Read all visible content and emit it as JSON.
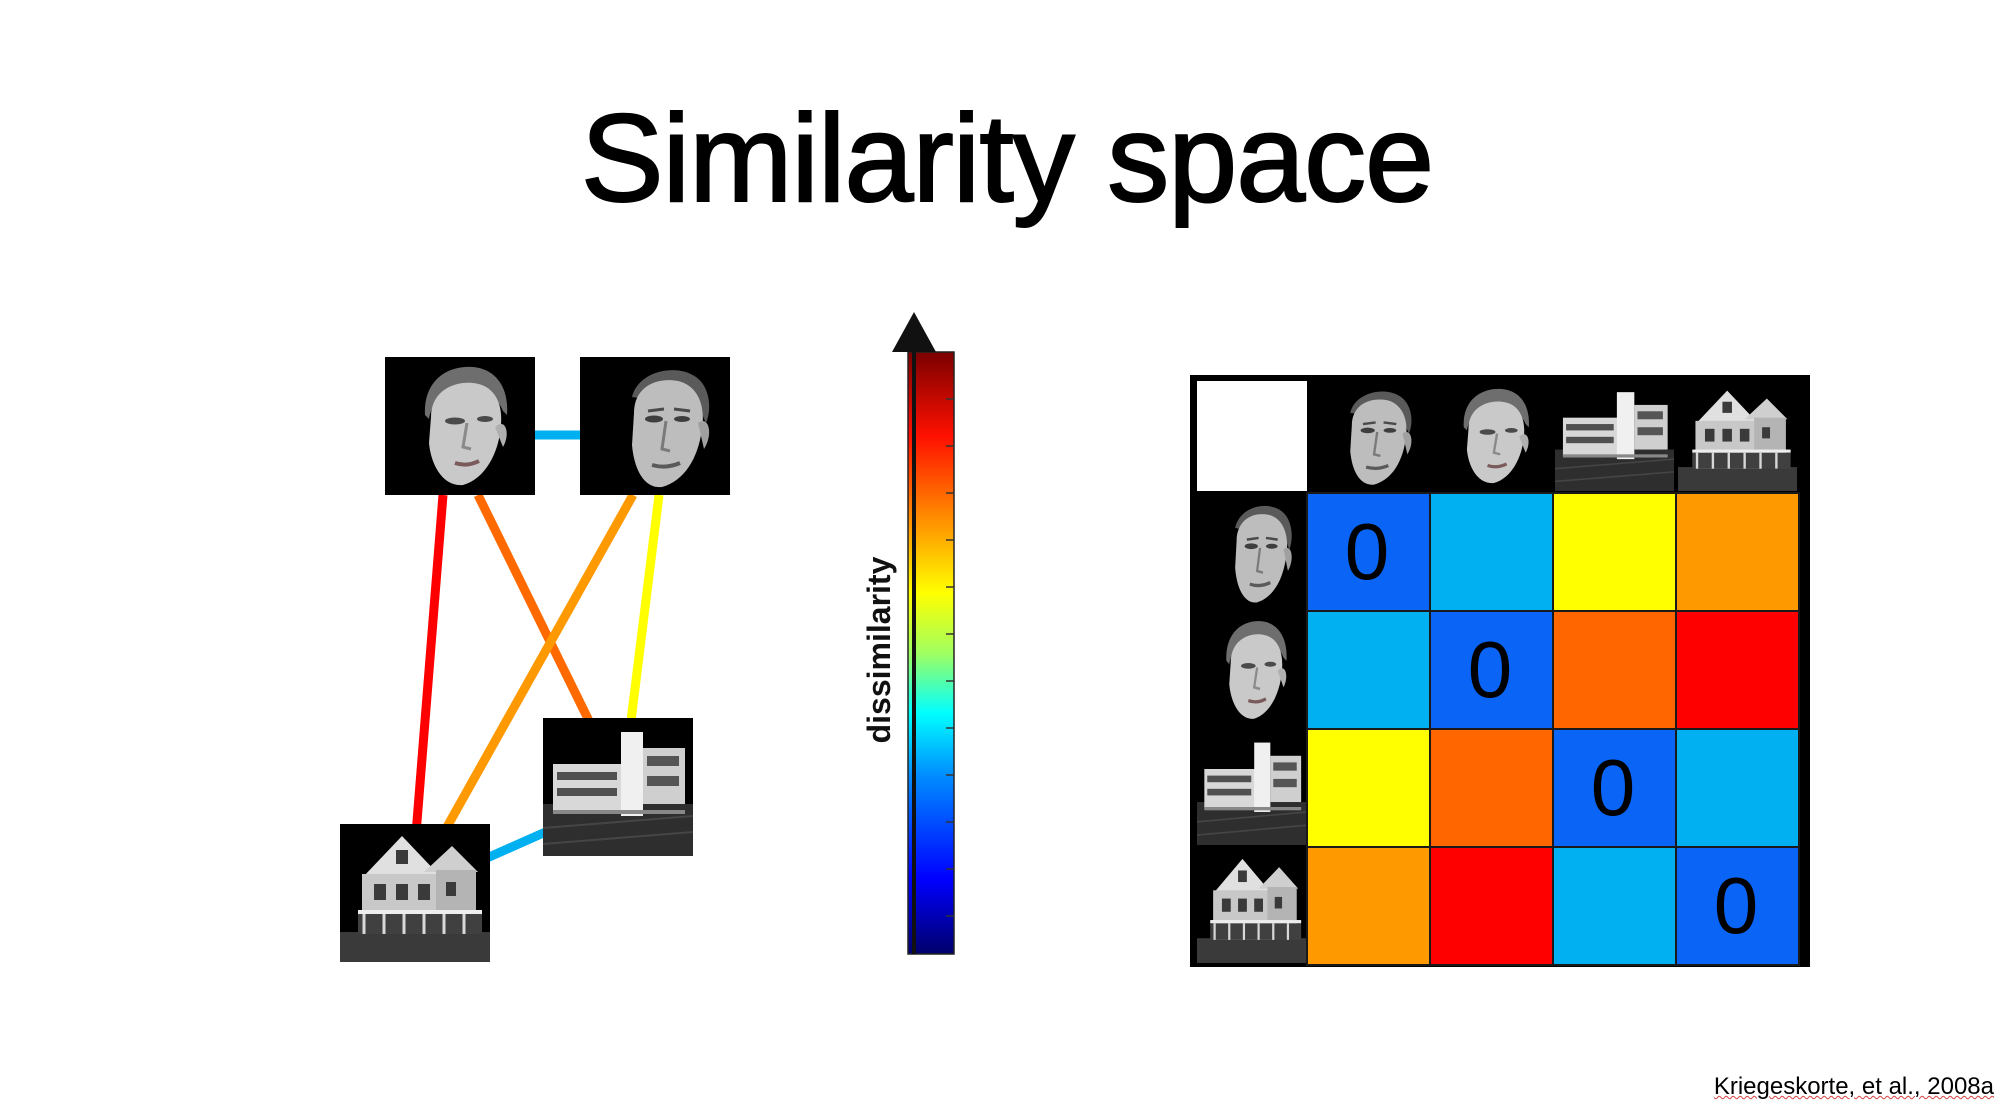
{
  "slide": {
    "title": "Similarity space",
    "colorbar_label": "dissimilarity",
    "citation": "Kriegeskorte, et al., 2008a"
  },
  "colors": {
    "colorbar_stops": [
      "#00006a",
      "#0000ff",
      "#0090ff",
      "#00ffff",
      "#a0ff60",
      "#ffff00",
      "#ff9000",
      "#ff1000",
      "#7a0000"
    ],
    "edge_colors": {
      "face_face": "#00b0f0",
      "house_house": "#00b0f0",
      "face1_house1": "#ff0000",
      "face1_house2": "#ff6a00",
      "face2_house1": "#ff9900",
      "face2_house2": "#ffff00"
    }
  },
  "graph": {
    "nodes": [
      "woman-face",
      "man-face",
      "modern-building",
      "victorian-house"
    ],
    "edges": [
      {
        "from": "woman-face",
        "to": "man-face",
        "color_key": "face_face"
      },
      {
        "from": "woman-face",
        "to": "victorian-house",
        "color_key": "face1_house1"
      },
      {
        "from": "woman-face",
        "to": "modern-building",
        "color_key": "face1_house2"
      },
      {
        "from": "man-face",
        "to": "victorian-house",
        "color_key": "face2_house1"
      },
      {
        "from": "man-face",
        "to": "modern-building",
        "color_key": "face2_house2"
      },
      {
        "from": "modern-building",
        "to": "victorian-house",
        "color_key": "house_house"
      }
    ]
  },
  "matrix": {
    "stimuli": [
      "man-face",
      "woman-face",
      "modern-building",
      "victorian-house"
    ],
    "diagonal_label": "0",
    "cells": [
      [
        "#0a64f5",
        "#00b0f0",
        "#ffff00",
        "#ff9900"
      ],
      [
        "#00b0f0",
        "#0a64f5",
        "#ff6600",
        "#ff0000"
      ],
      [
        "#ffff00",
        "#ff6600",
        "#0a64f5",
        "#00b0f0"
      ],
      [
        "#ff9900",
        "#ff0000",
        "#00b0f0",
        "#0a64f5"
      ]
    ]
  }
}
